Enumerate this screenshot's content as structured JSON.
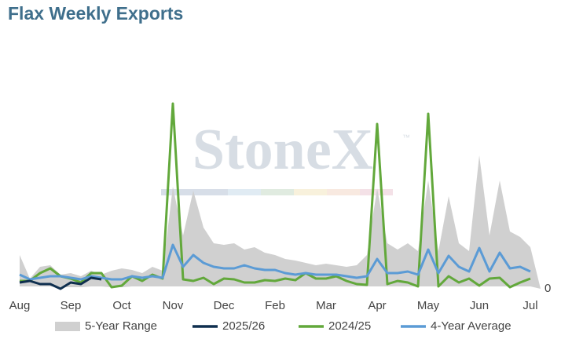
{
  "chart_data": {
    "type": "line",
    "title": "Flax Weekly Exports",
    "watermark": "StoneX",
    "watermark_mark": "™",
    "x": [
      0,
      1,
      2,
      3,
      4,
      5,
      6,
      7,
      8,
      9,
      10,
      11,
      12,
      13,
      14,
      15,
      16,
      17,
      18,
      19,
      20,
      21,
      22,
      23,
      24,
      25,
      26,
      27,
      28,
      29,
      30,
      31,
      32,
      33,
      34,
      35,
      36,
      37,
      38,
      39,
      40,
      41,
      42,
      43,
      44,
      45,
      46,
      47,
      48,
      49,
      50,
      51
    ],
    "xlim": [
      0,
      51
    ],
    "xticks": [
      {
        "value": 0,
        "label": "Aug"
      },
      {
        "value": 5,
        "label": "Sep"
      },
      {
        "value": 10,
        "label": "Oct"
      },
      {
        "value": 15,
        "label": "Nov"
      },
      {
        "value": 20,
        "label": "Dec"
      },
      {
        "value": 25,
        "label": "Feb"
      },
      {
        "value": 30,
        "label": "Mar"
      },
      {
        "value": 35,
        "label": "Apr"
      },
      {
        "value": 40,
        "label": "May"
      },
      {
        "value": 45,
        "label": "Jun"
      },
      {
        "value": 50,
        "label": "Jul"
      }
    ],
    "ylim": [
      0,
      250
    ],
    "yticks": [
      0
    ],
    "legend": "bottom",
    "series": [
      {
        "name": "5-Year Range",
        "color": "#d0d0d0",
        "high": [
          43,
          13,
          28,
          30,
          18,
          20,
          16,
          23,
          18,
          23,
          26,
          24,
          20,
          28,
          23,
          130,
          68,
          125,
          78,
          58,
          56,
          58,
          50,
          53,
          46,
          43,
          38,
          36,
          33,
          30,
          32,
          30,
          28,
          30,
          43,
          128,
          58,
          50,
          58,
          48,
          138,
          48,
          118,
          58,
          48,
          170,
          68,
          138,
          73,
          66,
          53,
          0
        ],
        "low": [
          3,
          3,
          3,
          3,
          2,
          2,
          2,
          3,
          3,
          2,
          2,
          3,
          3,
          3,
          3,
          3,
          3,
          3,
          3,
          3,
          3,
          3,
          3,
          3,
          3,
          3,
          3,
          3,
          3,
          3,
          3,
          3,
          3,
          3,
          3,
          3,
          3,
          3,
          3,
          3,
          3,
          3,
          3,
          3,
          3,
          3,
          3,
          3,
          3,
          3,
          3,
          0
        ]
      },
      {
        "name": "2024/25",
        "color": "#62a83b",
        "values": [
          10,
          10,
          20,
          26,
          16,
          13,
          8,
          20,
          20,
          2,
          4,
          16,
          10,
          18,
          13,
          236,
          12,
          10,
          14,
          6,
          13,
          12,
          8,
          8,
          11,
          10,
          13,
          11,
          20,
          13,
          13,
          16,
          10,
          6,
          5,
          210,
          6,
          10,
          8,
          3,
          223,
          3,
          16,
          8,
          13,
          4,
          13,
          14,
          2,
          8,
          13,
          null
        ]
      },
      {
        "name": "4-Year Average",
        "color": "#5b9bd5",
        "values": [
          18,
          12,
          14,
          16,
          16,
          14,
          12,
          16,
          14,
          12,
          12,
          16,
          14,
          16,
          14,
          56,
          28,
          43,
          33,
          28,
          26,
          26,
          30,
          26,
          24,
          24,
          20,
          18,
          20,
          18,
          18,
          18,
          16,
          14,
          16,
          38,
          20,
          20,
          22,
          18,
          50,
          20,
          42,
          28,
          22,
          52,
          22,
          46,
          26,
          28,
          22,
          null
        ]
      },
      {
        "name": "2025/26",
        "color": "#0f2f4f",
        "values": [
          8,
          10,
          6,
          6,
          0,
          8,
          6,
          14,
          12,
          null,
          null,
          null,
          null,
          null,
          null,
          null,
          null,
          null,
          null,
          null,
          null,
          null,
          null,
          null,
          null,
          null,
          null,
          null,
          null,
          null,
          null,
          null,
          null,
          null,
          null,
          null,
          null,
          null,
          null,
          null,
          null,
          null,
          null,
          null,
          null,
          null,
          null,
          null,
          null,
          null,
          null,
          null
        ]
      }
    ],
    "legend_order": [
      "5-Year Range",
      "2025/26",
      "2024/25",
      "4-Year Average"
    ]
  }
}
